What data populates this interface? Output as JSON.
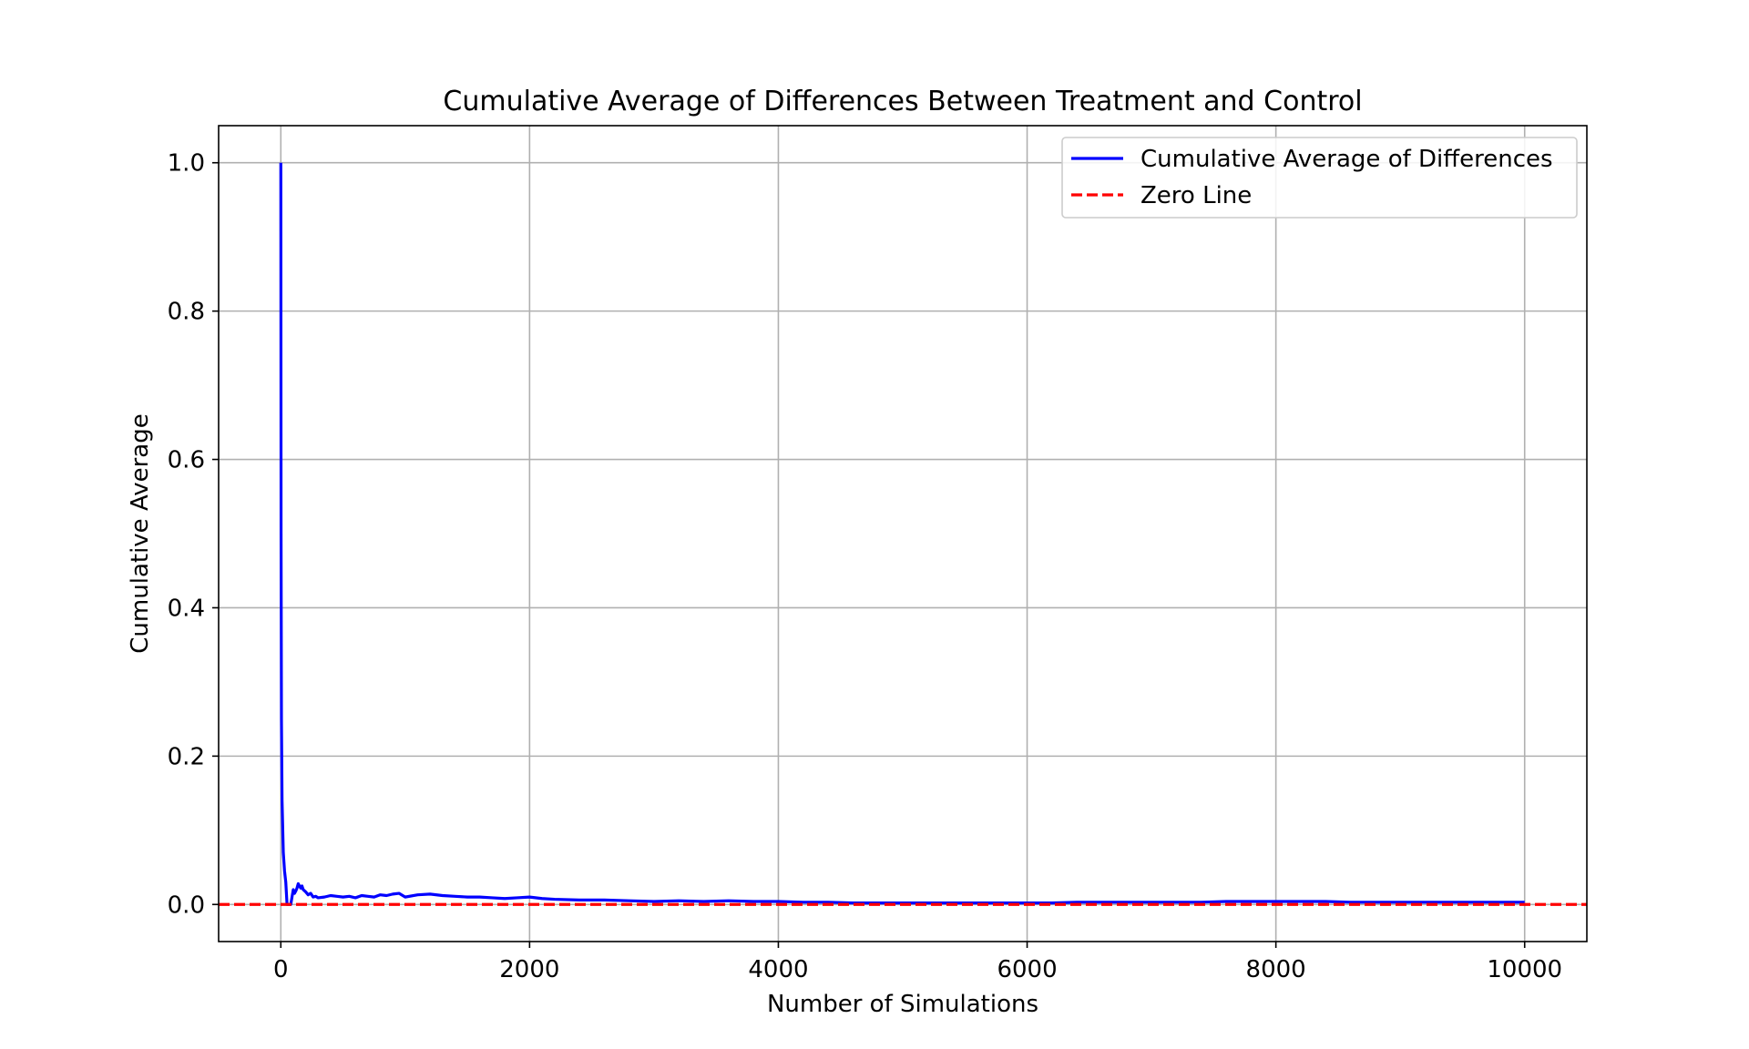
{
  "chart_data": {
    "type": "line",
    "title": "Cumulative Average of Differences Between Treatment and Control",
    "xlabel": "Number of Simulations",
    "ylabel": "Cumulative Average",
    "xlim": [
      -500,
      10500
    ],
    "ylim": [
      -0.05,
      1.05
    ],
    "xticks": [
      0,
      2000,
      4000,
      6000,
      8000,
      10000
    ],
    "xtick_labels": [
      "0",
      "2000",
      "4000",
      "6000",
      "8000",
      "10000"
    ],
    "yticks": [
      0.0,
      0.2,
      0.4,
      0.6,
      0.8,
      1.0
    ],
    "ytick_labels": [
      "0.0",
      "0.2",
      "0.4",
      "0.6",
      "0.8",
      "1.0"
    ],
    "grid": true,
    "legend_position": "top-right",
    "series": [
      {
        "name": "Cumulative Average of Differences",
        "color": "#0000ff",
        "style": "solid",
        "x": [
          0,
          2,
          5,
          10,
          20,
          30,
          40,
          50,
          60,
          70,
          80,
          90,
          100,
          110,
          120,
          130,
          140,
          150,
          160,
          170,
          180,
          200,
          220,
          240,
          260,
          280,
          300,
          350,
          400,
          450,
          500,
          550,
          600,
          650,
          700,
          750,
          800,
          850,
          900,
          950,
          1000,
          1100,
          1200,
          1300,
          1400,
          1500,
          1600,
          1700,
          1800,
          1900,
          2000,
          2100,
          2200,
          2400,
          2600,
          2800,
          3000,
          3200,
          3400,
          3600,
          3800,
          4000,
          4200,
          4400,
          4600,
          4800,
          5000,
          5200,
          5400,
          5600,
          5800,
          6000,
          6200,
          6400,
          6600,
          6800,
          7000,
          7200,
          7400,
          7600,
          7800,
          8000,
          8200,
          8400,
          8600,
          8800,
          9000,
          9200,
          9400,
          9600,
          9800,
          10000
        ],
        "y": [
          1.0,
          0.5,
          0.25,
          0.14,
          0.07,
          0.045,
          0.03,
          0.0,
          0.0,
          0.0,
          0.0,
          0.01,
          0.02,
          0.015,
          0.018,
          0.022,
          0.028,
          0.025,
          0.022,
          0.025,
          0.02,
          0.017,
          0.013,
          0.015,
          0.01,
          0.011,
          0.009,
          0.01,
          0.012,
          0.011,
          0.01,
          0.011,
          0.009,
          0.012,
          0.011,
          0.01,
          0.013,
          0.012,
          0.014,
          0.015,
          0.01,
          0.013,
          0.014,
          0.012,
          0.011,
          0.01,
          0.01,
          0.009,
          0.008,
          0.009,
          0.01,
          0.008,
          0.007,
          0.006,
          0.006,
          0.005,
          0.004,
          0.005,
          0.004,
          0.005,
          0.004,
          0.004,
          0.003,
          0.003,
          0.002,
          0.002,
          0.002,
          0.002,
          0.002,
          0.002,
          0.002,
          0.002,
          0.002,
          0.003,
          0.003,
          0.003,
          0.003,
          0.003,
          0.003,
          0.004,
          0.004,
          0.004,
          0.004,
          0.004,
          0.003,
          0.003,
          0.003,
          0.003,
          0.003,
          0.003,
          0.003,
          0.003
        ]
      },
      {
        "name": "Zero Line",
        "color": "#ff0000",
        "style": "dashed",
        "y_const": 0.0
      }
    ]
  }
}
